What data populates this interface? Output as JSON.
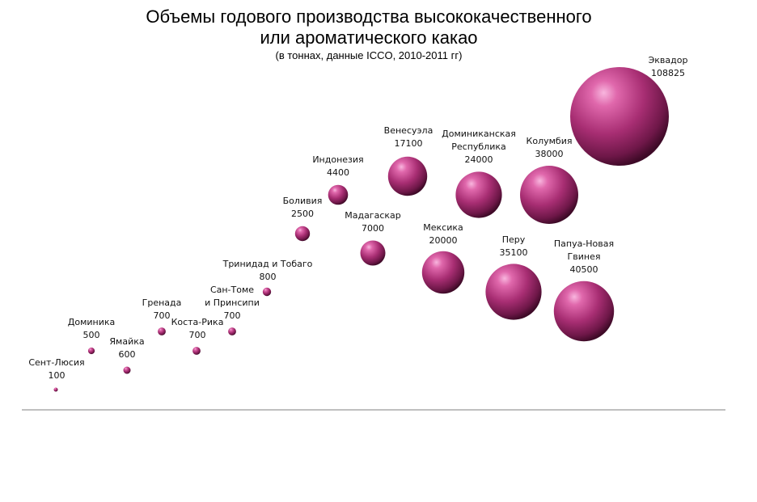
{
  "chart_data": {
    "type": "bubble",
    "title_lines": [
      "Объемы годового производства высококачественного",
      "или ароматического какао"
    ],
    "subtitle": "(в тоннах, данные ICCO, 2010-2011 гг)",
    "xlabel": "",
    "ylabel": "",
    "grid": false,
    "legend": "none",
    "bubble_color": "#9a2c6b",
    "series": [
      {
        "label_lines": [
          "Сент-Люсия"
        ],
        "value": "100",
        "size": 100
      },
      {
        "label_lines": [
          "Доминика"
        ],
        "value": "500",
        "size": 500
      },
      {
        "label_lines": [
          "Ямайка"
        ],
        "value": "600",
        "size": 600
      },
      {
        "label_lines": [
          "Гренада"
        ],
        "value": "700",
        "size": 700
      },
      {
        "label_lines": [
          "Коста-Рика"
        ],
        "value": "700",
        "size": 700
      },
      {
        "label_lines": [
          "Сан-Томе",
          "и Принсипи"
        ],
        "value": "700",
        "size": 700
      },
      {
        "label_lines": [
          "Тринидад и Тобаго"
        ],
        "value": "800",
        "size": 800
      },
      {
        "label_lines": [
          "Боливия"
        ],
        "value": "2500",
        "size": 2500
      },
      {
        "label_lines": [
          "Индонезия"
        ],
        "value": "4400",
        "size": 4400
      },
      {
        "label_lines": [
          "Мадагаскар"
        ],
        "value": "7000",
        "size": 7000
      },
      {
        "label_lines": [
          "Венесуэла"
        ],
        "value": "17100",
        "size": 17100
      },
      {
        "label_lines": [
          "Мексика"
        ],
        "value": "20000",
        "size": 20000
      },
      {
        "label_lines": [
          "Доминиканская",
          "Республика"
        ],
        "value": "24000",
        "size": 24000
      },
      {
        "label_lines": [
          "Перу"
        ],
        "value": "35100",
        "size": 35100
      },
      {
        "label_lines": [
          "Колумбия"
        ],
        "value": "38000",
        "size": 38000
      },
      {
        "label_lines": [
          "Папуа-Новая",
          "Гвинея"
        ],
        "value": "40500",
        "size": 40500
      },
      {
        "label_lines": [
          "Эквадор"
        ],
        "value": "108825",
        "size": 108825
      }
    ]
  }
}
